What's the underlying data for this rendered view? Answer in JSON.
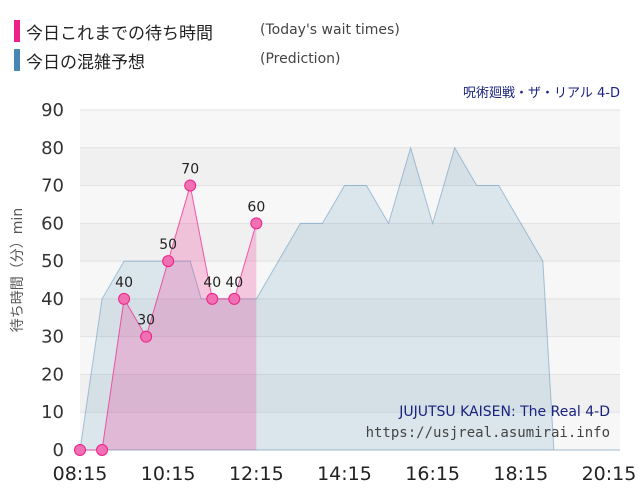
{
  "legend": {
    "actual_label": "今日これまでの待ち時間",
    "actual_en": "(Today's wait times)",
    "prediction_label": "今日の混雑予想",
    "prediction_en": "(Prediction)"
  },
  "attraction_jp": "呪術廻戦・ザ・リアル 4-D",
  "watermark": {
    "title_en": "JUJUTSU KAISEN: The Real 4-D",
    "url": "https://usjreal.asumirai.info"
  },
  "colors": {
    "actual": "#ee1f8a",
    "prediction": "#4a86b4"
  },
  "chart_data": {
    "type": "area",
    "ylabel": "待ち時間（分）min",
    "ylim": [
      0,
      90
    ],
    "yticks": [
      0,
      10,
      20,
      30,
      40,
      50,
      60,
      70,
      80,
      90
    ],
    "xlim": [
      "08:15",
      "20:30"
    ],
    "xticks": [
      "08:15",
      "10:15",
      "12:15",
      "14:15",
      "16:15",
      "18:15",
      "20:15"
    ],
    "grid": "horizontal bands",
    "series": [
      {
        "name": "今日の混雑予想",
        "x": [
          "08:15",
          "08:30",
          "08:45",
          "09:00",
          "09:15",
          "09:30",
          "09:45",
          "10:00",
          "10:15",
          "10:30",
          "10:45",
          "11:00",
          "11:15",
          "11:30",
          "11:45",
          "12:00",
          "12:15",
          "12:30",
          "12:45",
          "13:00",
          "13:15",
          "13:30",
          "13:45",
          "14:00",
          "14:15",
          "14:30",
          "14:45",
          "15:00",
          "15:15",
          "15:30",
          "15:45",
          "16:00",
          "16:15",
          "16:30",
          "16:45",
          "17:00",
          "17:15",
          "17:30",
          "17:45",
          "18:00",
          "18:15",
          "18:30",
          "18:45",
          "19:00",
          "19:15",
          "19:30",
          "19:45",
          "20:00",
          "20:15",
          "20:30"
        ],
        "values": [
          0,
          20,
          40,
          45,
          50,
          50,
          50,
          50,
          50,
          50,
          50,
          40,
          40,
          40,
          40,
          40,
          40,
          45,
          50,
          55,
          60,
          60,
          60,
          65,
          70,
          70,
          70,
          65,
          60,
          70,
          80,
          70,
          60,
          70,
          80,
          75,
          70,
          70,
          70,
          65,
          60,
          55,
          50,
          0,
          0,
          0,
          0,
          0,
          0,
          0
        ]
      },
      {
        "name": "今日これまでの待ち時間",
        "x": [
          "08:15",
          "08:45",
          "09:15",
          "09:45",
          "10:15",
          "10:45",
          "11:15",
          "11:45",
          "12:15"
        ],
        "values": [
          0,
          0,
          40,
          30,
          50,
          70,
          40,
          40,
          60
        ],
        "labels": [
          "",
          "",
          "40",
          "30",
          "50",
          "70",
          "40",
          "40",
          "60"
        ]
      }
    ]
  }
}
